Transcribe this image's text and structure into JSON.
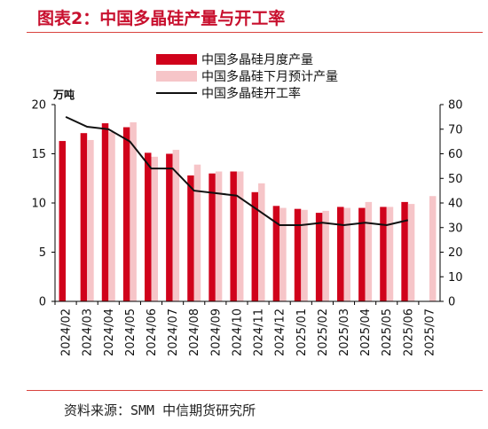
{
  "header": {
    "title": "图表2：中国多晶硅产量与开工率"
  },
  "footer": {
    "source": "资料来源：SMM 中信期货研究所"
  },
  "chart_data": {
    "type": "bar",
    "categories": [
      "2024/02",
      "2024/03",
      "2024/04",
      "2024/05",
      "2024/06",
      "2024/07",
      "2024/08",
      "2024/09",
      "2024/10",
      "2024/11",
      "2024/12",
      "2025/01",
      "2025/02",
      "2025/03",
      "2025/04",
      "2025/05",
      "2025/06",
      "2025/07"
    ],
    "series": [
      {
        "name": "中国多晶硅月度产量",
        "type": "bar",
        "axis": "left",
        "color": "#d0021b",
        "values": [
          16.3,
          17.1,
          18.1,
          17.7,
          15.1,
          15.0,
          12.8,
          13.0,
          13.2,
          11.1,
          9.7,
          9.4,
          9.0,
          9.6,
          9.5,
          9.6,
          10.1,
          null
        ]
      },
      {
        "name": "中国多晶硅下月预计产量",
        "type": "bar",
        "axis": "left",
        "color": "#f6c5c8",
        "values": [
          null,
          16.4,
          17.2,
          18.2,
          14.7,
          15.4,
          13.9,
          13.2,
          13.2,
          12.0,
          9.5,
          9.3,
          9.2,
          9.5,
          10.1,
          9.6,
          9.9,
          10.7
        ]
      },
      {
        "name": "中国多晶硅开工率",
        "type": "line",
        "axis": "right",
        "color": "#111111",
        "values": [
          75,
          71,
          70,
          65,
          54,
          54,
          45,
          44,
          43,
          37,
          31,
          31,
          32,
          31,
          32,
          31,
          33,
          null
        ]
      }
    ],
    "left_axis": {
      "unit": "万吨",
      "min": 0,
      "max": 20,
      "ticks": [
        "0",
        "5",
        "10",
        "15",
        "20"
      ]
    },
    "right_axis": {
      "min": 0,
      "max": 80,
      "ticks": [
        "0",
        "10",
        "20",
        "30",
        "40",
        "50",
        "60",
        "70",
        "80"
      ]
    },
    "legend_position": "top-center"
  }
}
